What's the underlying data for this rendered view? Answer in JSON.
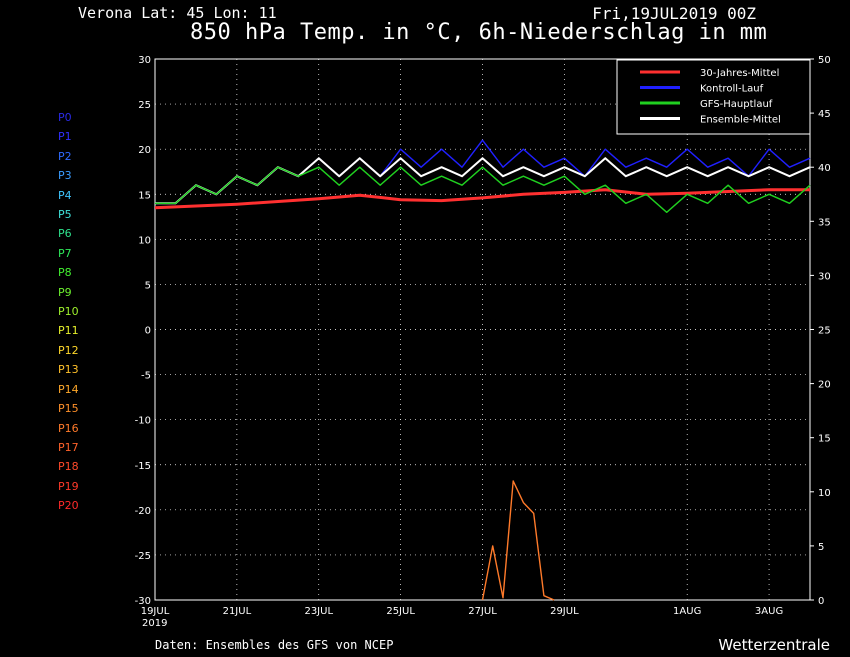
{
  "header": {
    "station": "Verona   Lat: 45 Lon: 11",
    "run": "Fri,19JUL2019 00Z",
    "title": "850 hPa Temp. in °C, 6h-Niederschlag in mm"
  },
  "footer": {
    "source": "Daten: Ensembles des GFS von NCEP",
    "brand": "Wetterzentrale"
  },
  "members": [
    {
      "label": "P0",
      "color": "#2a2ae6"
    },
    {
      "label": "P1",
      "color": "#3030ff"
    },
    {
      "label": "P2",
      "color": "#2f6bff"
    },
    {
      "label": "P3",
      "color": "#3a9cff"
    },
    {
      "label": "P4",
      "color": "#3fc6ff"
    },
    {
      "label": "P5",
      "color": "#3fe0d8"
    },
    {
      "label": "P6",
      "color": "#2ee08c"
    },
    {
      "label": "P7",
      "color": "#2ee85a"
    },
    {
      "label": "P8",
      "color": "#42f030"
    },
    {
      "label": "P9",
      "color": "#6cf02e"
    },
    {
      "label": "P10",
      "color": "#9ef02c"
    },
    {
      "label": "P11",
      "color": "#e6f02a"
    },
    {
      "label": "P12",
      "color": "#ffd82a"
    },
    {
      "label": "P13",
      "color": "#ffc02a"
    },
    {
      "label": "P14",
      "color": "#ffa82a"
    },
    {
      "label": "P15",
      "color": "#ff902a"
    },
    {
      "label": "P16",
      "color": "#ff7a2a"
    },
    {
      "label": "P17",
      "color": "#ff622a"
    },
    {
      "label": "P18",
      "color": "#ff4a2a"
    },
    {
      "label": "P19",
      "color": "#ff3a2a"
    },
    {
      "label": "P20",
      "color": "#ff2a2a"
    }
  ],
  "chart_data": {
    "type": "line",
    "title": "850 hPa Temp. in °C, 6h-Niederschlag in mm",
    "x_start": "2019-07-19",
    "x_ticks": [
      {
        "date": "2019-07-19",
        "label": "19JUL",
        "sub": "2019"
      },
      {
        "date": "2019-07-21",
        "label": "21JUL"
      },
      {
        "date": "2019-07-23",
        "label": "23JUL"
      },
      {
        "date": "2019-07-25",
        "label": "25JUL"
      },
      {
        "date": "2019-07-27",
        "label": "27JUL"
      },
      {
        "date": "2019-07-29",
        "label": "29JUL"
      },
      {
        "date": "2019-08-01",
        "label": "1AUG"
      },
      {
        "date": "2019-08-03",
        "label": "3AUG"
      }
    ],
    "x_range": [
      "2019-07-19",
      "2019-08-04"
    ],
    "y_left": {
      "range": [
        -30,
        30
      ],
      "ticks": [
        30,
        25,
        20,
        15,
        10,
        5,
        0,
        -5,
        -10,
        -15,
        -20,
        -25,
        -30
      ]
    },
    "y_right": {
      "range": [
        0,
        50
      ],
      "ticks": [
        50,
        45,
        40,
        35,
        30,
        25,
        20,
        15,
        10,
        5,
        0
      ]
    },
    "grid": true,
    "legend_position": "top-right",
    "legend": [
      {
        "name": "30-Jahres-Mittel",
        "color": "#ff3030"
      },
      {
        "name": "Kontroll-Lauf",
        "color": "#2020ff"
      },
      {
        "name": "GFS-Hauptlauf",
        "color": "#20d020"
      },
      {
        "name": "Ensemble-Mittel",
        "color": "#ffffff"
      }
    ],
    "series": [
      {
        "name": "30-Jahres-Mittel",
        "axis": "left",
        "color": "#ff3030",
        "x": [
          "2019-07-19",
          "2019-07-21",
          "2019-07-23",
          "2019-07-24",
          "2019-07-25",
          "2019-07-26",
          "2019-07-27",
          "2019-07-28",
          "2019-07-29",
          "2019-07-30",
          "2019-07-31",
          "2019-08-01",
          "2019-08-02",
          "2019-08-03",
          "2019-08-04"
        ],
        "y": [
          13.5,
          13.9,
          14.5,
          14.9,
          14.4,
          14.3,
          14.6,
          15.0,
          15.2,
          15.5,
          15.0,
          15.1,
          15.3,
          15.5,
          15.5
        ]
      },
      {
        "name": "Ensemble-Mittel",
        "axis": "left",
        "color": "#ffffff",
        "x": [
          "2019-07-19",
          "2019-07-19T12",
          "2019-07-20",
          "2019-07-20T12",
          "2019-07-21",
          "2019-07-21T12",
          "2019-07-22",
          "2019-07-22T12",
          "2019-07-23",
          "2019-07-23T12",
          "2019-07-24",
          "2019-07-24T12",
          "2019-07-25",
          "2019-07-25T12",
          "2019-07-26",
          "2019-07-26T12",
          "2019-07-27",
          "2019-07-27T12",
          "2019-07-28",
          "2019-07-28T12",
          "2019-07-29",
          "2019-07-29T12",
          "2019-07-30",
          "2019-07-30T12",
          "2019-07-31",
          "2019-07-31T12",
          "2019-08-01",
          "2019-08-01T12",
          "2019-08-02",
          "2019-08-02T12",
          "2019-08-03",
          "2019-08-03T12",
          "2019-08-04"
        ],
        "y": [
          14,
          14,
          16,
          15,
          17,
          16,
          18,
          17,
          19,
          17,
          19,
          17,
          19,
          17,
          18,
          17,
          19,
          17,
          18,
          17,
          18,
          17,
          19,
          17,
          18,
          17,
          18,
          17,
          18,
          17,
          18,
          17,
          18
        ]
      },
      {
        "name": "Kontroll-Lauf",
        "axis": "left",
        "color": "#2020ff",
        "x": [
          "2019-07-19",
          "2019-07-19T12",
          "2019-07-20",
          "2019-07-20T12",
          "2019-07-21",
          "2019-07-21T12",
          "2019-07-22",
          "2019-07-22T12",
          "2019-07-23",
          "2019-07-23T12",
          "2019-07-24",
          "2019-07-24T12",
          "2019-07-25",
          "2019-07-25T12",
          "2019-07-26",
          "2019-07-26T12",
          "2019-07-27",
          "2019-07-27T12",
          "2019-07-28",
          "2019-07-28T12",
          "2019-07-29",
          "2019-07-29T12",
          "2019-07-30",
          "2019-07-30T12",
          "2019-07-31",
          "2019-07-31T12",
          "2019-08-01",
          "2019-08-01T12",
          "2019-08-02",
          "2019-08-02T12",
          "2019-08-03",
          "2019-08-03T12",
          "2019-08-04"
        ],
        "y": [
          14,
          14,
          16,
          15,
          17,
          16,
          18,
          17,
          19,
          17,
          19,
          17,
          20,
          18,
          20,
          18,
          21,
          18,
          20,
          18,
          19,
          17,
          20,
          18,
          19,
          18,
          20,
          18,
          19,
          17,
          20,
          18,
          19
        ]
      },
      {
        "name": "GFS-Hauptlauf",
        "axis": "left",
        "color": "#20d020",
        "x": [
          "2019-07-19",
          "2019-07-19T12",
          "2019-07-20",
          "2019-07-20T12",
          "2019-07-21",
          "2019-07-21T12",
          "2019-07-22",
          "2019-07-22T12",
          "2019-07-23",
          "2019-07-23T12",
          "2019-07-24",
          "2019-07-24T12",
          "2019-07-25",
          "2019-07-25T12",
          "2019-07-26",
          "2019-07-26T12",
          "2019-07-27",
          "2019-07-27T12",
          "2019-07-28",
          "2019-07-28T12",
          "2019-07-29",
          "2019-07-29T12",
          "2019-07-30",
          "2019-07-30T12",
          "2019-07-31",
          "2019-07-31T12",
          "2019-08-01",
          "2019-08-01T12",
          "2019-08-02",
          "2019-08-02T12",
          "2019-08-03",
          "2019-08-03T12",
          "2019-08-04"
        ],
        "y": [
          14,
          14,
          16,
          15,
          17,
          16,
          18,
          17,
          18,
          16,
          18,
          16,
          18,
          16,
          17,
          16,
          18,
          16,
          17,
          16,
          17,
          15,
          16,
          14,
          15,
          13,
          15,
          14,
          16,
          14,
          15,
          14,
          16
        ]
      },
      {
        "name": "Niederschlag",
        "axis": "right",
        "color": "#ff7a2a",
        "x": [
          "2019-07-27",
          "2019-07-27T06",
          "2019-07-27T12",
          "2019-07-27T18",
          "2019-07-28",
          "2019-07-28T06",
          "2019-07-28T12",
          "2019-07-28T18"
        ],
        "y": [
          0,
          5,
          0.2,
          11,
          9,
          8,
          0.4,
          0
        ]
      }
    ]
  }
}
